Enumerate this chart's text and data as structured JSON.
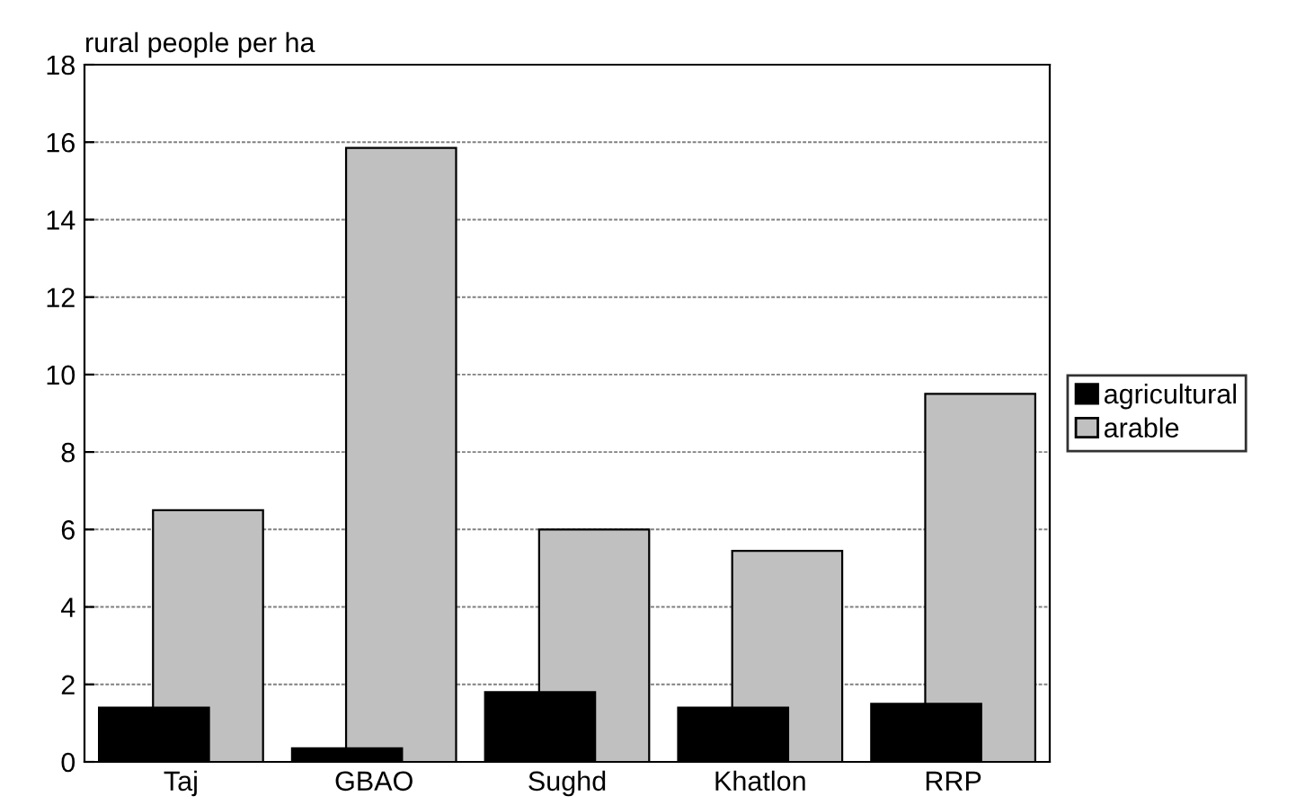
{
  "chart_data": {
    "type": "bar",
    "ylabel": "rural people per ha",
    "categories": [
      "Taj",
      "GBAO",
      "Sughd",
      "Khatlon",
      "RRP"
    ],
    "series": [
      {
        "name": "agricultural",
        "color": "#000000",
        "values": [
          1.4,
          0.35,
          1.8,
          1.4,
          1.5
        ]
      },
      {
        "name": "arable",
        "color": "#c0c0c0",
        "values": [
          6.5,
          15.85,
          6.0,
          5.45,
          9.5
        ]
      }
    ],
    "ylim": [
      0,
      18
    ],
    "yticks": [
      0,
      2,
      4,
      6,
      8,
      10,
      12,
      14,
      16,
      18
    ],
    "grid": "y",
    "legend": "right"
  }
}
